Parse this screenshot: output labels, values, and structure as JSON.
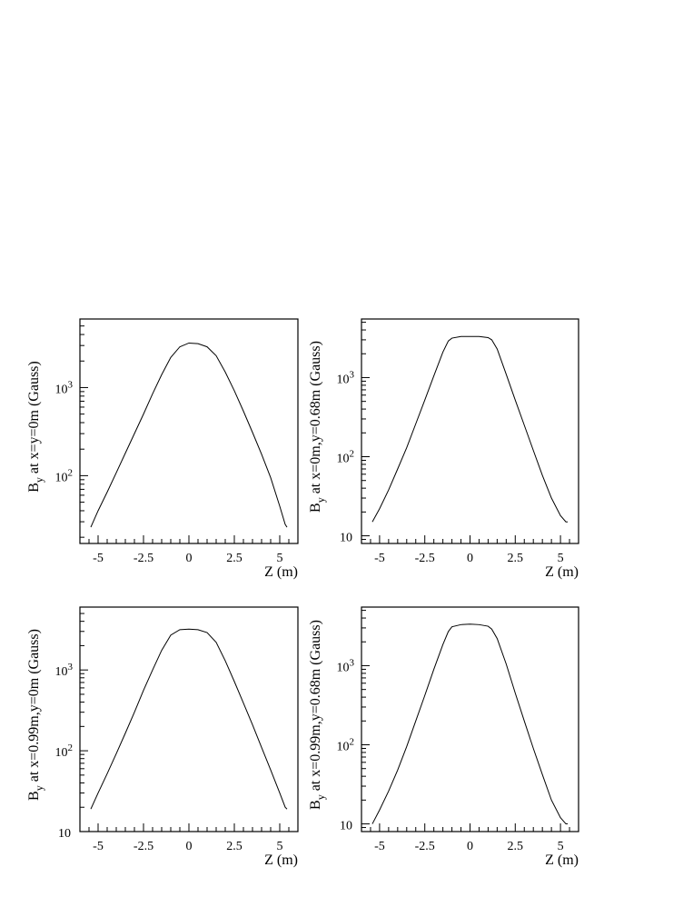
{
  "chart_data": [
    {
      "type": "line",
      "xlabel": "Z (m)",
      "ylabel_main": "B",
      "ylabel_sub": "y",
      "ylabel_rest": " at x=y=0m (Gauss)",
      "xlim": [
        -6,
        6
      ],
      "ylim": [
        17,
        6000
      ],
      "yscale": "log",
      "xticks_labeled": [
        -5,
        -2.5,
        0,
        2.5,
        5
      ],
      "xtick_labels": [
        "-5",
        "-2.5",
        "0",
        "2.5",
        "5"
      ],
      "yticks_labeled": [
        100,
        1000
      ],
      "ytick_labels": [
        {
          "base": "10",
          "exp": "2"
        },
        {
          "base": "10",
          "exp": "3"
        }
      ],
      "x": [
        -5.4,
        -5.0,
        -4.5,
        -4.0,
        -3.5,
        -3.0,
        -2.5,
        -2.0,
        -1.5,
        -1.0,
        -0.5,
        0,
        0.5,
        1.0,
        1.5,
        2.0,
        2.5,
        3.0,
        3.5,
        4.0,
        4.5,
        5.0,
        5.3,
        5.4
      ],
      "y": [
        26,
        40,
        65,
        108,
        180,
        300,
        500,
        850,
        1400,
        2200,
        2900,
        3200,
        3150,
        2900,
        2300,
        1500,
        920,
        540,
        310,
        175,
        95,
        45,
        28,
        26
      ]
    },
    {
      "type": "line",
      "xlabel": "Z (m)",
      "ylabel_main": "B",
      "ylabel_sub": "y",
      "ylabel_rest": " at x=0m,y=0.68m (Gauss)",
      "xlim": [
        -6,
        6
      ],
      "ylim": [
        8,
        5500
      ],
      "yscale": "log",
      "xticks_labeled": [
        -5,
        -2.5,
        0,
        2.5,
        5
      ],
      "xtick_labels": [
        "-5",
        "-2.5",
        "0",
        "2.5",
        "5"
      ],
      "yticks_labeled": [
        10,
        100,
        1000
      ],
      "ytick_labels": [
        {
          "base": "10",
          "exp": ""
        },
        {
          "base": "10",
          "exp": "2"
        },
        {
          "base": "10",
          "exp": "3"
        }
      ],
      "x": [
        -5.4,
        -5.0,
        -4.5,
        -4.0,
        -3.5,
        -3.0,
        -2.5,
        -2.0,
        -1.5,
        -1.2,
        -1.0,
        -0.5,
        0,
        0.5,
        1.0,
        1.2,
        1.5,
        2.0,
        2.5,
        3.0,
        3.5,
        4.0,
        4.5,
        5.0,
        5.3,
        5.4
      ],
      "y": [
        15,
        22,
        38,
        70,
        130,
        260,
        520,
        1050,
        2100,
        2900,
        3150,
        3300,
        3300,
        3300,
        3200,
        3000,
        2300,
        1100,
        520,
        250,
        120,
        58,
        30,
        18,
        15,
        15
      ]
    },
    {
      "type": "line",
      "xlabel": "Z (m)",
      "ylabel_main": "B",
      "ylabel_sub": "y",
      "ylabel_rest": " at x=0.99m,y=0m (Gauss)",
      "xlim": [
        -6,
        6
      ],
      "ylim": [
        10,
        6000
      ],
      "yscale": "log",
      "xticks_labeled": [
        -5,
        -2.5,
        0,
        2.5,
        5
      ],
      "xtick_labels": [
        "-5",
        "-2.5",
        "0",
        "2.5",
        "5"
      ],
      "yticks_labeled": [
        10,
        100,
        1000
      ],
      "ytick_labels": [
        {
          "base": "10",
          "exp": ""
        },
        {
          "base": "10",
          "exp": "2"
        },
        {
          "base": "10",
          "exp": "3"
        }
      ],
      "x": [
        -5.4,
        -5.0,
        -4.5,
        -4.0,
        -3.5,
        -3.0,
        -2.5,
        -2.0,
        -1.5,
        -1.0,
        -0.5,
        0,
        0.5,
        1.0,
        1.5,
        2.0,
        2.5,
        3.0,
        3.5,
        4.0,
        4.5,
        5.0,
        5.3,
        5.4
      ],
      "y": [
        19,
        30,
        52,
        92,
        165,
        300,
        560,
        1000,
        1750,
        2700,
        3150,
        3200,
        3150,
        2900,
        2200,
        1300,
        720,
        390,
        210,
        110,
        58,
        30,
        20,
        19
      ]
    },
    {
      "type": "line",
      "xlabel": "Z (m)",
      "ylabel_main": "B",
      "ylabel_sub": "y",
      "ylabel_rest": " at x=0.99m,y=0.68m (Gauss)",
      "xlim": [
        -6,
        6
      ],
      "ylim": [
        8,
        5500
      ],
      "yscale": "log",
      "xticks_labeled": [
        -5,
        -2.5,
        0,
        2.5,
        5
      ],
      "xtick_labels": [
        "-5",
        "-2.5",
        "0",
        "2.5",
        "5"
      ],
      "yticks_labeled": [
        10,
        100,
        1000
      ],
      "ytick_labels": [
        {
          "base": "10",
          "exp": ""
        },
        {
          "base": "10",
          "exp": "2"
        },
        {
          "base": "10",
          "exp": "3"
        }
      ],
      "x": [
        -5.4,
        -5.0,
        -4.5,
        -4.0,
        -3.5,
        -3.0,
        -2.5,
        -2.0,
        -1.5,
        -1.2,
        -1.0,
        -0.5,
        0,
        0.5,
        1.0,
        1.2,
        1.5,
        2.0,
        2.5,
        3.0,
        3.5,
        4.0,
        4.5,
        5.0,
        5.3,
        5.4
      ],
      "y": [
        10,
        15,
        26,
        48,
        95,
        200,
        420,
        900,
        1850,
        2700,
        3100,
        3300,
        3350,
        3300,
        3150,
        2900,
        2200,
        1050,
        450,
        200,
        90,
        42,
        20,
        12,
        10,
        10
      ]
    }
  ]
}
